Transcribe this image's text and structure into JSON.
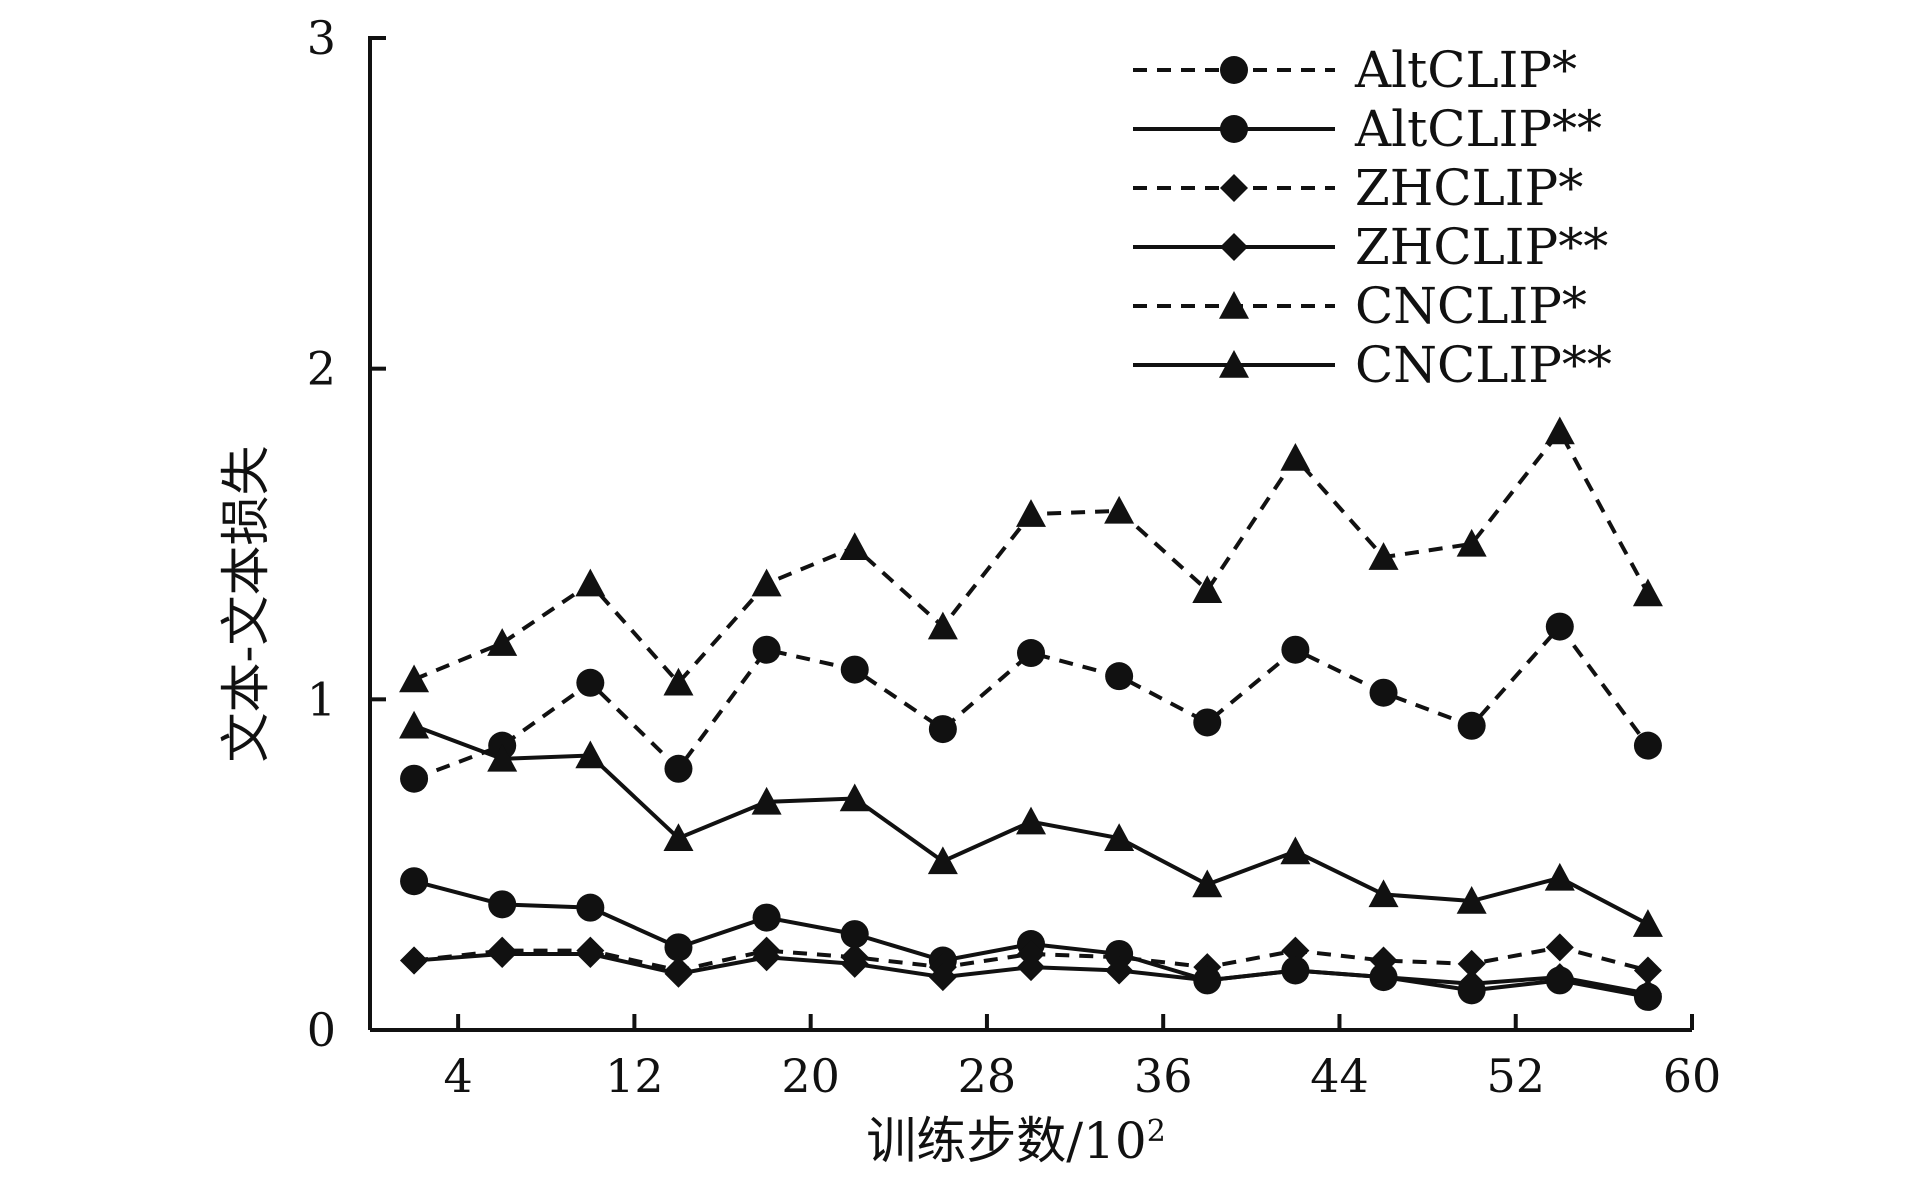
{
  "chart_data": {
    "type": "line",
    "xlabel": "训练步数/10",
    "xlabel_sup": "2",
    "ylabel": "文本-文本损失",
    "xlim": [
      0,
      60
    ],
    "ylim": [
      0,
      3
    ],
    "xticks": [
      "4",
      "12",
      "20",
      "28",
      "36",
      "44",
      "52",
      "60"
    ],
    "yticks": [
      "0",
      "1",
      "2",
      "3"
    ],
    "x": [
      2,
      6,
      10,
      14,
      18,
      22,
      26,
      30,
      34,
      38,
      42,
      46,
      50,
      54,
      58
    ],
    "legend_position": "top-right",
    "series": [
      {
        "name": "AltCLIP*",
        "marker": "circle",
        "dash": true,
        "values": [
          0.76,
          0.86,
          1.05,
          0.79,
          1.15,
          1.09,
          0.91,
          1.14,
          1.07,
          0.93,
          1.15,
          1.02,
          0.92,
          1.22,
          0.86
        ]
      },
      {
        "name": "AltCLIP**",
        "marker": "circle",
        "dash": false,
        "values": [
          0.45,
          0.38,
          0.37,
          0.25,
          0.34,
          0.29,
          0.21,
          0.26,
          0.23,
          0.15,
          0.18,
          0.16,
          0.12,
          0.15,
          0.1
        ]
      },
      {
        "name": "ZHCLIP*",
        "marker": "diamond",
        "dash": true,
        "values": [
          0.21,
          0.24,
          0.24,
          0.18,
          0.24,
          0.22,
          0.19,
          0.23,
          0.22,
          0.19,
          0.24,
          0.21,
          0.2,
          0.25,
          0.18
        ]
      },
      {
        "name": "ZHCLIP**",
        "marker": "diamond",
        "dash": false,
        "values": [
          0.21,
          0.23,
          0.23,
          0.17,
          0.22,
          0.2,
          0.16,
          0.19,
          0.18,
          0.15,
          0.18,
          0.16,
          0.14,
          0.16,
          0.11
        ]
      },
      {
        "name": "CNCLIP*",
        "marker": "triangle",
        "dash": true,
        "values": [
          1.06,
          1.17,
          1.35,
          1.05,
          1.35,
          1.46,
          1.22,
          1.56,
          1.57,
          1.33,
          1.73,
          1.43,
          1.47,
          1.81,
          1.32
        ]
      },
      {
        "name": "CNCLIP**",
        "marker": "triangle",
        "dash": false,
        "values": [
          0.92,
          0.82,
          0.83,
          0.58,
          0.69,
          0.7,
          0.51,
          0.63,
          0.58,
          0.44,
          0.54,
          0.41,
          0.39,
          0.46,
          0.32
        ]
      }
    ]
  }
}
